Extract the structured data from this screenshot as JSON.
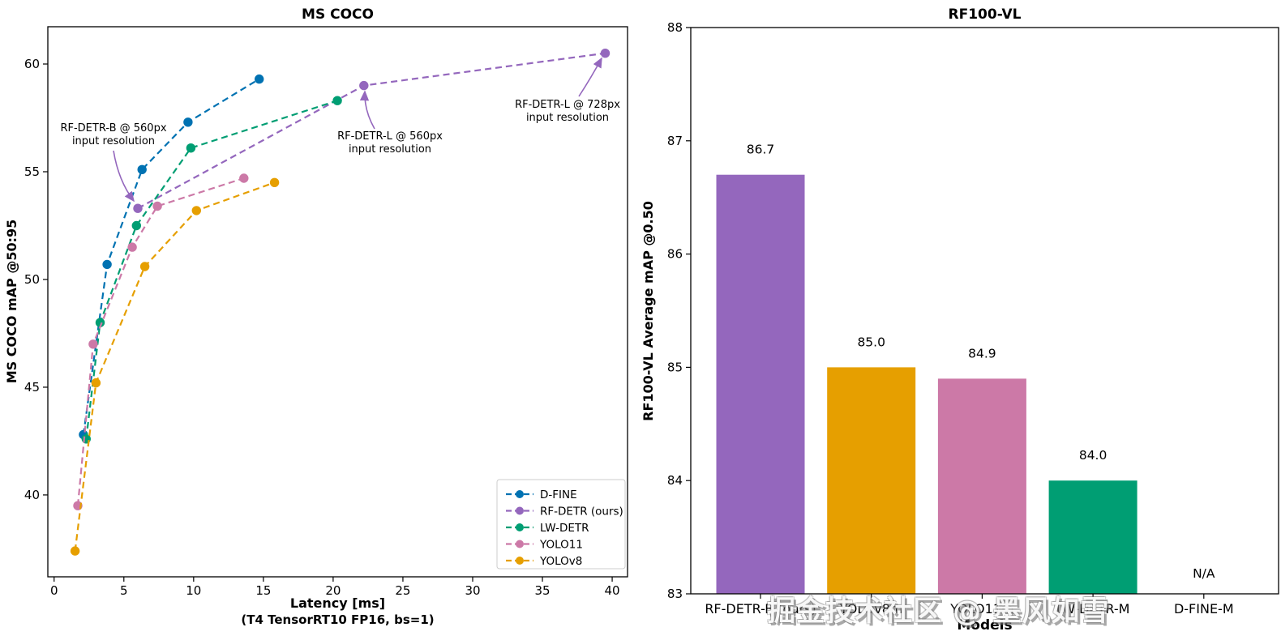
{
  "watermark": {
    "text": "掘金技术社区 @ 墨风如雪"
  },
  "chart_data": [
    {
      "type": "line",
      "title": "MS COCO",
      "xlabel": "Latency [ms]",
      "xlabel_sub": "(T4 TensorRT10 FP16, bs=1)",
      "ylabel": "MS COCO mAP @50:95",
      "xlim": [
        -0.45,
        41.1
      ],
      "ylim": [
        36.2,
        61.73
      ],
      "xticks": [
        0,
        5,
        10,
        15,
        20,
        25,
        30,
        35,
        40
      ],
      "yticks": [
        40,
        45,
        50,
        55,
        60
      ],
      "grid": false,
      "legend_position": "lower right",
      "line_style": "dashed",
      "series": [
        {
          "name": "D-FINE",
          "color": "#0072B2",
          "points": [
            [
              2.1,
              42.8
            ],
            [
              3.8,
              50.7
            ],
            [
              6.3,
              55.1
            ],
            [
              9.6,
              57.3
            ],
            [
              14.7,
              59.3
            ]
          ]
        },
        {
          "name": "RF-DETR (ours)",
          "color": "#9467BD",
          "points": [
            [
              6.0,
              53.3
            ],
            [
              22.2,
              59.0
            ],
            [
              39.5,
              60.5
            ]
          ]
        },
        {
          "name": "LW-DETR",
          "color": "#009E73",
          "points": [
            [
              2.3,
              42.6
            ],
            [
              3.3,
              48.0
            ],
            [
              5.9,
              52.5
            ],
            [
              9.8,
              56.1
            ],
            [
              20.3,
              58.3
            ]
          ]
        },
        {
          "name": "YOLO11",
          "color": "#CC79A7",
          "points": [
            [
              1.7,
              39.5
            ],
            [
              2.8,
              47.0
            ],
            [
              5.6,
              51.5
            ],
            [
              7.4,
              53.4
            ],
            [
              13.6,
              54.7
            ]
          ]
        },
        {
          "name": "YOLOv8",
          "color": "#E69F00",
          "points": [
            [
              1.5,
              37.4
            ],
            [
              3.0,
              45.2
            ],
            [
              6.5,
              50.6
            ],
            [
              10.2,
              53.2
            ],
            [
              15.8,
              54.5
            ]
          ]
        }
      ],
      "annotations": [
        {
          "lines": [
            "RF-DETR-B @ 560px",
            "input resolution"
          ],
          "target": [
            6.0,
            53.3
          ],
          "color": "#9467BD"
        },
        {
          "lines": [
            "RF-DETR-L @ 560px",
            "input resolution"
          ],
          "target": [
            22.2,
            59.0
          ],
          "color": "#9467BD"
        },
        {
          "lines": [
            "RF-DETR-L @ 728px",
            "input resolution"
          ],
          "target": [
            39.5,
            60.5
          ],
          "color": "#9467BD"
        }
      ]
    },
    {
      "type": "bar",
      "title": "RF100-VL",
      "xlabel": "Models",
      "ylabel": "RF100-VL Average mAP @0.50",
      "ylim": [
        83,
        88
      ],
      "yticks": [
        83,
        84,
        85,
        86,
        87,
        88
      ],
      "grid": false,
      "categories": [
        "RF-DETR-B (ours)",
        "YOLOv8m",
        "YOLO11m",
        "LW-DETR-M",
        "D-FINE-M"
      ],
      "values": [
        86.7,
        85.0,
        84.9,
        84.0,
        null
      ],
      "value_labels": [
        "86.7",
        "85.0",
        "84.9",
        "84.0",
        "N/A"
      ],
      "colors": [
        "#9467BD",
        "#E69F00",
        "#CC79A7",
        "#009E73",
        "#0072B2"
      ]
    }
  ]
}
